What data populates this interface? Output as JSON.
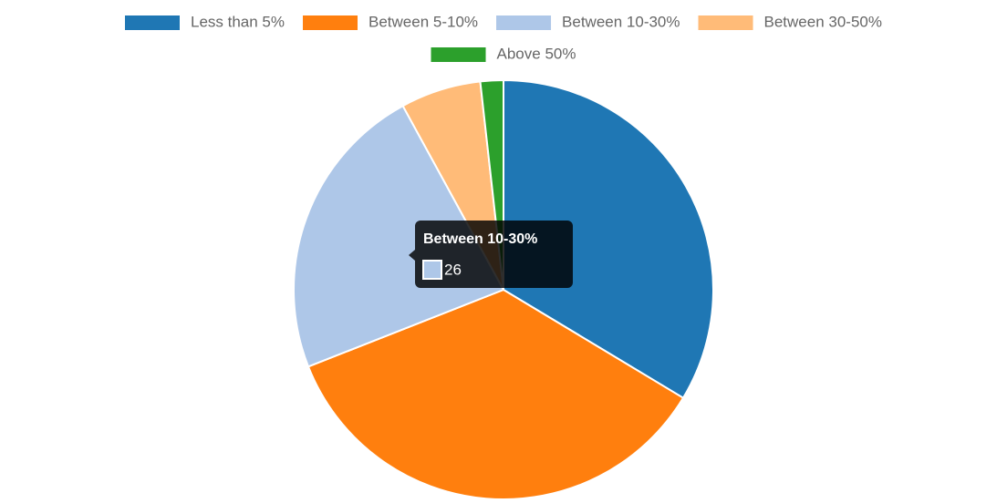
{
  "chart_data": {
    "type": "pie",
    "categories": [
      "Less than 5%",
      "Between 5-10%",
      "Between 10-30%",
      "Between 30-50%",
      "Above 50%"
    ],
    "values": [
      38,
      40,
      26,
      7,
      2
    ],
    "colors": [
      "#1f77b4",
      "#ff7f0e",
      "#aec7e8",
      "#ffbb78",
      "#2ca02c"
    ],
    "legend": "top"
  }
}
